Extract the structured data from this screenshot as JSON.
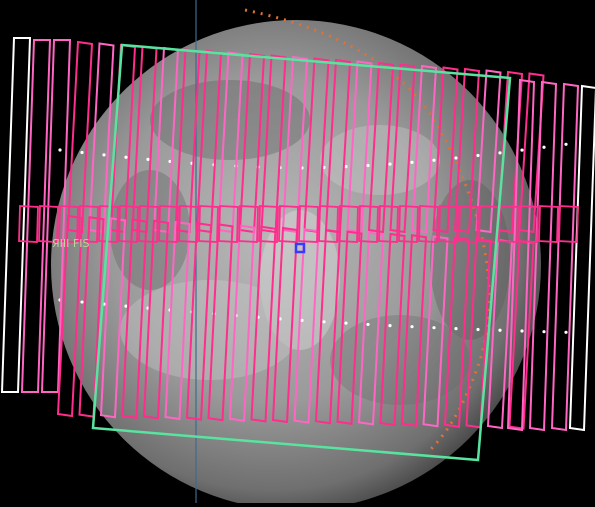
{
  "viewer": {
    "target": "planet-disk",
    "fov_label": "ЯIII FIS",
    "colors": {
      "background": "#000000",
      "footprint_primary": "#ff2d8c",
      "footprint_secondary": "#ff66c4",
      "footprint_outline_white": "#ffffff",
      "fov_frame": "#59e3a0",
      "terminator_dots": "#e0703a",
      "grid_dots": "#ffffff",
      "marker": "#3a3aff",
      "vertical_line": "#3d6b8f"
    }
  }
}
